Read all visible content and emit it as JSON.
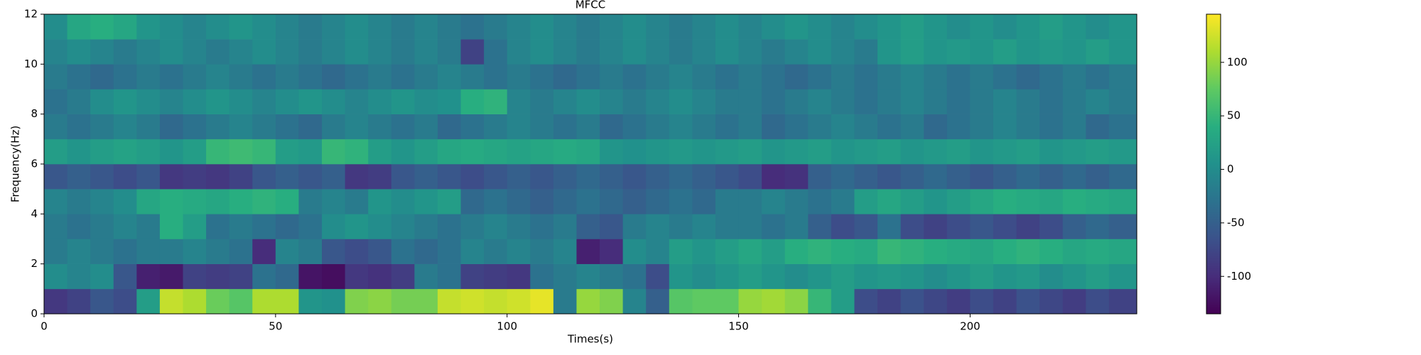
{
  "chart_data": {
    "type": "heatmap",
    "title": "MFCC",
    "xlabel": "Times(s)",
    "ylabel": "Frequency(Hz)",
    "xlim": [
      0,
      236
    ],
    "xticks": [
      0,
      50,
      100,
      150,
      200
    ],
    "ylim": [
      0,
      12
    ],
    "yticks": [
      0,
      2,
      4,
      6,
      8,
      10,
      12
    ],
    "xbins": [
      0,
      5,
      10,
      15,
      20,
      25,
      30,
      35,
      40,
      45,
      50,
      55,
      60,
      65,
      70,
      75,
      80,
      85,
      90,
      95,
      100,
      105,
      110,
      115,
      120,
      125,
      130,
      135,
      140,
      145,
      150,
      155,
      160,
      165,
      170,
      175,
      180,
      185,
      190,
      195,
      200,
      205,
      210,
      215,
      220,
      225,
      230,
      236
    ],
    "ybins": [
      0,
      1,
      2,
      3,
      4,
      5,
      6,
      7,
      8,
      9,
      10,
      11,
      12
    ],
    "colormap": "viridis",
    "clim": [
      -135,
      145
    ],
    "cticks": [
      -100,
      -50,
      0,
      50,
      100
    ],
    "z": [
      [
        -90,
        -80,
        -60,
        -70,
        20,
        120,
        110,
        80,
        70,
        110,
        110,
        10,
        5,
        90,
        95,
        85,
        85,
        120,
        125,
        120,
        125,
        135,
        -20,
        100,
        90,
        -10,
        -50,
        70,
        75,
        75,
        100,
        105,
        95,
        50,
        20,
        -70,
        -80,
        -65,
        -75,
        -85,
        -70,
        -80,
        -65,
        -75,
        -85,
        -70,
        -80
      ],
      [
        0,
        -10,
        0,
        -60,
        -110,
        -115,
        -80,
        -85,
        -80,
        -30,
        -40,
        -120,
        -125,
        -90,
        -95,
        -85,
        -20,
        -30,
        -80,
        -85,
        -90,
        -30,
        -20,
        -10,
        -20,
        -30,
        -70,
        10,
        0,
        10,
        20,
        10,
        0,
        10,
        20,
        10,
        15,
        10,
        0,
        10,
        20,
        10,
        15,
        0,
        10,
        20,
        10
      ],
      [
        -20,
        -10,
        -20,
        -30,
        -20,
        -20,
        -10,
        -20,
        -30,
        -100,
        -10,
        -20,
        -60,
        -70,
        -60,
        -30,
        -40,
        -30,
        -10,
        -20,
        -10,
        -20,
        -10,
        -110,
        -100,
        0,
        -10,
        20,
        10,
        20,
        30,
        20,
        40,
        45,
        40,
        35,
        50,
        45,
        40,
        35,
        30,
        40,
        45,
        40,
        30,
        35,
        30
      ],
      [
        -20,
        -30,
        -20,
        -10,
        -20,
        40,
        20,
        -30,
        -20,
        -30,
        -40,
        -30,
        0,
        10,
        0,
        -10,
        -20,
        -30,
        -20,
        -10,
        -20,
        -30,
        -20,
        -50,
        -60,
        -20,
        -10,
        -20,
        -10,
        -20,
        -20,
        -30,
        -20,
        -50,
        -70,
        -60,
        -30,
        -70,
        -80,
        -70,
        -60,
        -70,
        -80,
        -70,
        -50,
        -40,
        -50
      ],
      [
        -10,
        -20,
        -10,
        0,
        30,
        40,
        35,
        30,
        40,
        45,
        40,
        -20,
        -10,
        -20,
        10,
        0,
        10,
        20,
        -40,
        -30,
        -40,
        -50,
        -40,
        -30,
        -40,
        -50,
        -40,
        -30,
        -40,
        -20,
        -20,
        -10,
        -20,
        -30,
        -20,
        20,
        30,
        20,
        10,
        20,
        30,
        40,
        35,
        30,
        40,
        35,
        30
      ],
      [
        -60,
        -50,
        -60,
        -70,
        -60,
        -90,
        -85,
        -90,
        -80,
        -60,
        -50,
        -60,
        -50,
        -90,
        -85,
        -60,
        -50,
        -60,
        -70,
        -60,
        -50,
        -60,
        -50,
        -40,
        -50,
        -60,
        -50,
        -40,
        -50,
        -60,
        -70,
        -100,
        -95,
        -50,
        -40,
        -50,
        -60,
        -50,
        -40,
        -50,
        -60,
        -50,
        -40,
        -50,
        -40,
        -50,
        -40
      ],
      [
        20,
        10,
        20,
        25,
        20,
        10,
        20,
        50,
        55,
        50,
        20,
        15,
        50,
        45,
        20,
        10,
        20,
        30,
        35,
        30,
        25,
        30,
        35,
        30,
        10,
        5,
        10,
        15,
        10,
        15,
        20,
        10,
        15,
        20,
        10,
        15,
        20,
        10,
        15,
        20,
        10,
        15,
        20,
        10,
        15,
        20,
        15
      ],
      [
        -20,
        -30,
        -20,
        -10,
        -20,
        -40,
        -30,
        -20,
        -10,
        -20,
        -30,
        -40,
        -20,
        -10,
        -20,
        -30,
        -20,
        -40,
        -30,
        -20,
        -10,
        -20,
        -30,
        -20,
        -40,
        -30,
        -20,
        -10,
        -20,
        -30,
        -20,
        -40,
        -30,
        -20,
        -10,
        -20,
        -30,
        -20,
        -40,
        -30,
        -20,
        -10,
        -20,
        -30,
        -20,
        -40,
        -30
      ],
      [
        -30,
        -20,
        0,
        10,
        0,
        -10,
        0,
        10,
        0,
        -10,
        0,
        10,
        0,
        -10,
        0,
        10,
        0,
        5,
        40,
        45,
        -10,
        -20,
        -10,
        0,
        -10,
        -20,
        -10,
        0,
        -10,
        -20,
        -20,
        -30,
        -20,
        -10,
        -20,
        -30,
        -20,
        -10,
        -20,
        -30,
        -20,
        -10,
        -20,
        -30,
        -20,
        -10,
        -20
      ],
      [
        -20,
        -30,
        -40,
        -30,
        -20,
        -30,
        -20,
        -10,
        -20,
        -30,
        -20,
        -30,
        -40,
        -30,
        -20,
        -30,
        -20,
        -10,
        -20,
        -30,
        -20,
        -30,
        -40,
        -30,
        -20,
        -30,
        -20,
        -10,
        -20,
        -30,
        -20,
        -30,
        -40,
        -30,
        -20,
        -30,
        -20,
        -10,
        -20,
        -30,
        -20,
        -30,
        -40,
        -30,
        -20,
        -30,
        -20
      ],
      [
        -10,
        0,
        -10,
        -20,
        -10,
        0,
        -10,
        -20,
        -10,
        0,
        -10,
        -20,
        -10,
        0,
        -10,
        -20,
        -10,
        -20,
        -80,
        -30,
        -10,
        0,
        -10,
        -20,
        -10,
        0,
        -10,
        -20,
        -10,
        0,
        -10,
        -20,
        -10,
        0,
        -10,
        -20,
        10,
        20,
        10,
        15,
        10,
        20,
        10,
        15,
        10,
        20,
        10
      ],
      [
        0,
        30,
        40,
        30,
        10,
        0,
        -10,
        0,
        10,
        0,
        -10,
        -20,
        -10,
        0,
        -10,
        -20,
        -10,
        -20,
        -30,
        -20,
        -10,
        0,
        -10,
        -20,
        -10,
        0,
        -10,
        -20,
        -10,
        0,
        -10,
        0,
        10,
        0,
        -10,
        0,
        10,
        20,
        10,
        0,
        10,
        0,
        10,
        20,
        10,
        0,
        10
      ]
    ]
  }
}
